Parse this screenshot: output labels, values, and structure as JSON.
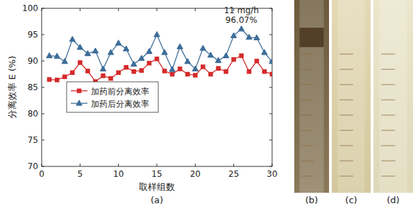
{
  "chart_data": {
    "type": "line",
    "caption": "(a)",
    "x_label": "取样组数",
    "y_label": "分离效率 E (%)",
    "x": [
      1,
      2,
      3,
      4,
      5,
      6,
      7,
      8,
      9,
      10,
      11,
      12,
      13,
      14,
      15,
      16,
      17,
      18,
      19,
      20,
      21,
      22,
      23,
      24,
      25,
      26,
      27,
      28,
      29,
      30
    ],
    "series": [
      {
        "name": "加药前分离效率",
        "color": "#d42a2a",
        "marker": "square",
        "line_style": "solid",
        "values": [
          86.5,
          86.4,
          87.0,
          87.8,
          89.7,
          88.1,
          86.1,
          87.2,
          86.7,
          87.8,
          88.8,
          88.0,
          88.2,
          89.6,
          90.4,
          88.1,
          87.5,
          88.5,
          87.5,
          87.3,
          88.9,
          87.5,
          88.6,
          88.0,
          90.3,
          91.0,
          88.0,
          90.0,
          88.0,
          87.5
        ]
      },
      {
        "name": "加药后分离效率",
        "color": "#3d6d99",
        "marker": "triangle",
        "line_style": "solid",
        "values": [
          91.0,
          90.9,
          89.9,
          94.1,
          92.6,
          91.4,
          91.9,
          88.5,
          91.6,
          93.4,
          92.3,
          89.4,
          90.5,
          91.8,
          95.0,
          91.6,
          88.4,
          92.7,
          89.9,
          88.5,
          92.4,
          91.1,
          90.1,
          91.0,
          94.8,
          96.07,
          94.5,
          94.4,
          91.6,
          89.9
        ]
      }
    ],
    "xlim": [
      0,
      30
    ],
    "xticks": [
      0,
      5,
      10,
      15,
      20,
      25,
      30
    ],
    "ylim": [
      70,
      100
    ],
    "yticks": [
      70,
      75,
      80,
      85,
      90,
      95,
      100
    ],
    "grid": false,
    "legend": "lower left",
    "annotations": [
      {
        "x": 26,
        "y": 96.07,
        "lines": [
          "11 mg/h",
          "96.07%"
        ]
      }
    ]
  },
  "image_panels": [
    {
      "label": "(b)"
    },
    {
      "label": "(c)"
    },
    {
      "label": "(d)"
    }
  ]
}
